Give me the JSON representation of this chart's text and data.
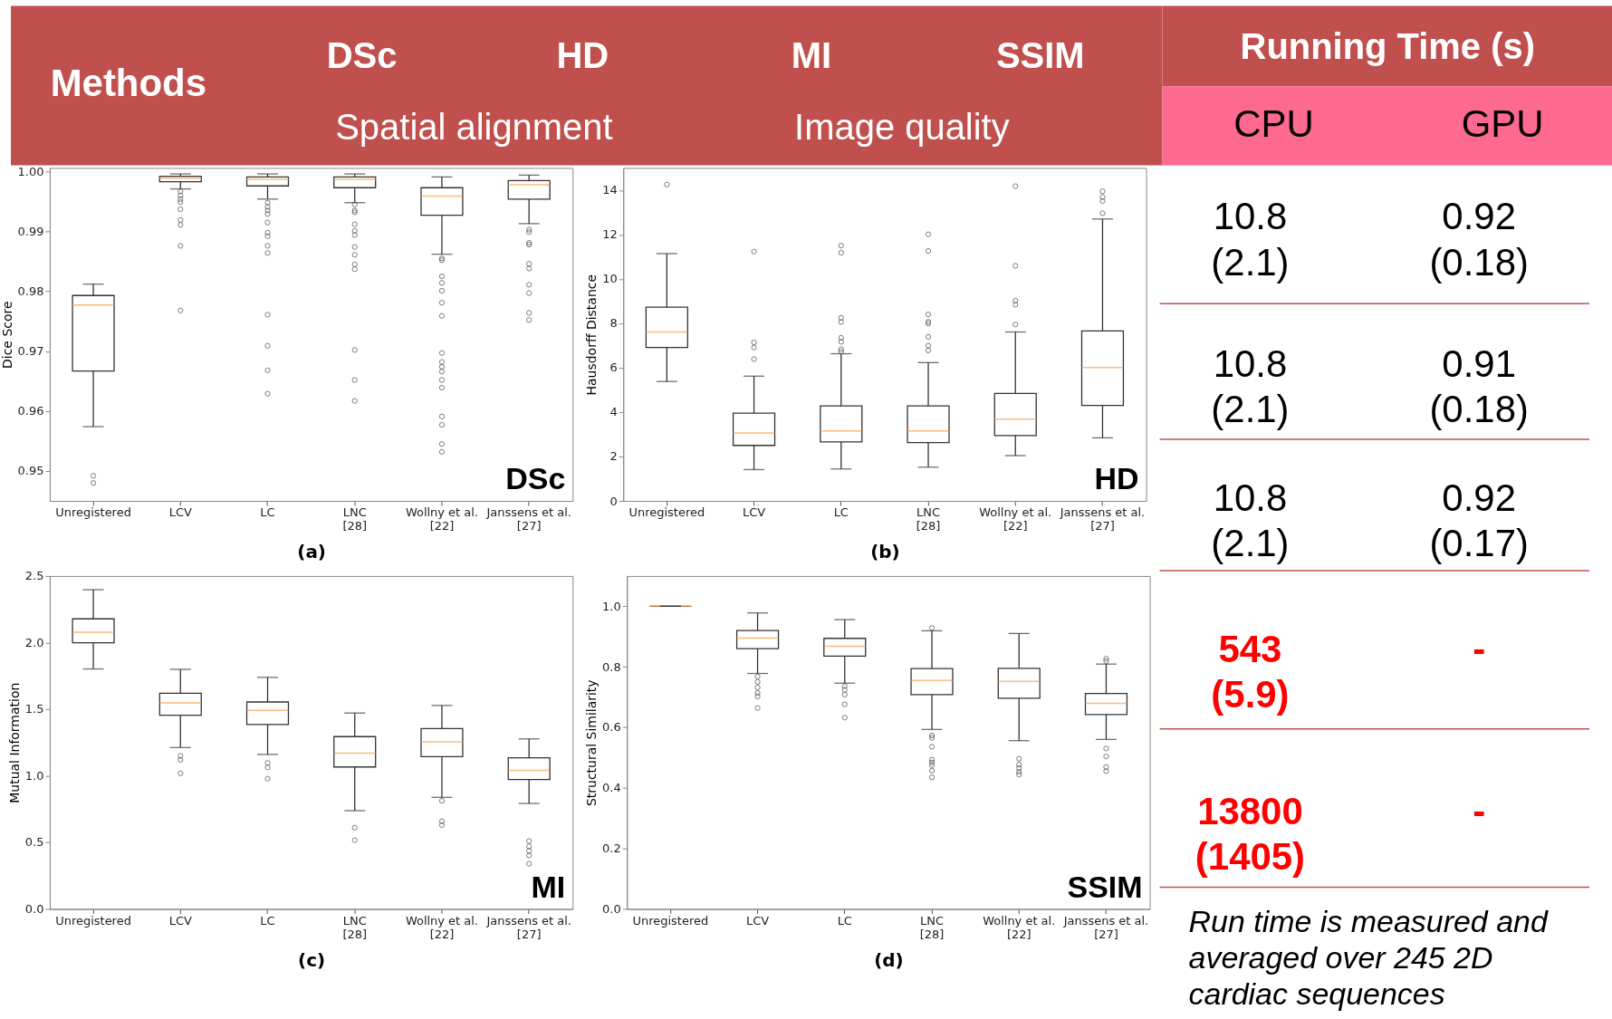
{
  "chart_data": [
    {
      "type": "box",
      "xlabel": "(a)",
      "ylabel": "Dice Score",
      "annotations": [
        "DSc"
      ],
      "categories": [
        "Unregistered",
        "LCV",
        "LC",
        "LNC\n[28]",
        "Wollny et al.\n[22]",
        "Janssens et al.\n[27]"
      ],
      "ylim": [
        0.945,
        1.0006
      ],
      "yticks": [
        0.95,
        0.96,
        0.97,
        0.98,
        0.99,
        {
          "value": 1.0,
          "label": "1.00"
        }
      ],
      "boxes": [
        {
          "low": 0.9574,
          "q1": 0.9667,
          "median": 0.9777,
          "q3": 0.9793,
          "high": 0.9812,
          "outliers": [
            0.9492,
            0.948
          ]
        },
        {
          "low": 0.9971,
          "q1": 0.9983,
          "median": 0.9989,
          "q3": 0.9992,
          "high": 0.9996,
          "outliers": [
            0.9967,
            0.996,
            0.9954,
            0.9949,
            0.9937,
            0.9919,
            0.9911,
            0.9876,
            0.9768
          ]
        },
        {
          "low": 0.9954,
          "q1": 0.9976,
          "median": 0.9987,
          "q3": 0.9991,
          "high": 0.9996,
          "outliers": [
            0.9948,
            0.9941,
            0.9935,
            0.9929,
            0.9915,
            0.9898,
            0.9892,
            0.9876,
            0.9864,
            0.9761,
            0.9709,
            0.9668,
            0.9629
          ]
        },
        {
          "low": 0.9948,
          "q1": 0.9973,
          "median": 0.9987,
          "q3": 0.9991,
          "high": 0.9996,
          "outliers": [
            0.9945,
            0.9935,
            0.9932,
            0.9912,
            0.9901,
            0.9894,
            0.9874,
            0.9861,
            0.9845,
            0.9837,
            0.9702,
            0.9652,
            0.9617
          ]
        },
        {
          "low": 0.9862,
          "q1": 0.9927,
          "median": 0.9959,
          "q3": 0.9973,
          "high": 0.9991,
          "outliers": [
            0.9855,
            0.9852,
            0.9825,
            0.9814,
            0.9801,
            0.9781,
            0.9759,
            0.9697,
            0.9682,
            0.9674,
            0.9666,
            0.9652,
            0.9639,
            0.9591,
            0.9577,
            0.9545,
            0.9532
          ]
        },
        {
          "low": 0.9913,
          "q1": 0.9954,
          "median": 0.9978,
          "q3": 0.9985,
          "high": 0.9994,
          "outliers": [
            0.9903,
            0.9899,
            0.9881,
            0.9878,
            0.9846,
            0.9838,
            0.9811,
            0.9797,
            0.9764,
            0.9752
          ]
        }
      ]
    },
    {
      "type": "box",
      "xlabel": "(b)",
      "ylabel": "Hausdorff Distance",
      "annotations": [
        "HD"
      ],
      "categories": [
        "Unregistered",
        "LCV",
        "LC",
        "LNC\n[28]",
        "Wollny et al.\n[22]",
        "Janssens et al.\n[27]"
      ],
      "ylim": [
        0,
        15
      ],
      "yticks": [
        0,
        2,
        4,
        6,
        8,
        10,
        12,
        14
      ],
      "boxes": [
        {
          "low": 5.38,
          "q1": 6.91,
          "median": 7.61,
          "q3": 8.73,
          "high": 11.14,
          "outliers": [
            14.25
          ]
        },
        {
          "low": 1.41,
          "q1": 2.5,
          "median": 3.06,
          "q3": 3.95,
          "high": 5.62,
          "outliers": [
            11.23,
            7.14,
            6.91,
            6.39
          ]
        },
        {
          "low": 1.44,
          "q1": 2.66,
          "median": 3.15,
          "q3": 4.28,
          "high": 6.63,
          "outliers": [
            11.5,
            11.18,
            8.25,
            8.06,
            7.35,
            7.17,
            6.83,
            6.73
          ]
        },
        {
          "low": 1.52,
          "q1": 2.63,
          "median": 3.15,
          "q3": 4.28,
          "high": 6.23,
          "outliers": [
            12.01,
            11.26,
            8.4,
            8.07,
            7.99,
            7.39,
            6.99,
            6.78
          ]
        },
        {
          "low": 2.04,
          "q1": 2.94,
          "median": 3.68,
          "q3": 4.84,
          "high": 7.61,
          "outliers": [
            14.18,
            10.59,
            9.02,
            8.84,
            7.95
          ]
        },
        {
          "low": 2.84,
          "q1": 4.3,
          "median": 6.01,
          "q3": 7.66,
          "high": 12.7,
          "outliers": [
            13.95,
            13.69,
            13.51,
            12.96
          ]
        }
      ]
    },
    {
      "type": "box",
      "xlabel": "(c)",
      "ylabel": "Mutual Information",
      "annotations": [
        "MI"
      ],
      "categories": [
        "Unregistered",
        "LCV",
        "LC",
        "LNC\n[28]",
        "Wollny et al.\n[22]",
        "Janssens et al.\n[27]"
      ],
      "ylim": [
        0,
        2.5
      ],
      "yticks": [
        {
          "value": 0,
          "label": "0.0"
        },
        0.5,
        {
          "value": 1,
          "label": "1.0"
        },
        1.5,
        {
          "value": 2,
          "label": "2.0"
        },
        2.5
      ],
      "boxes": [
        {
          "low": 1.802,
          "q1": 1.998,
          "median": 2.078,
          "q3": 2.178,
          "high": 2.397
        },
        {
          "low": 1.212,
          "q1": 1.454,
          "median": 1.548,
          "q3": 1.619,
          "high": 1.799,
          "outliers": [
            1.149,
            1.12,
            1.018
          ]
        },
        {
          "low": 1.16,
          "q1": 1.385,
          "median": 1.491,
          "q3": 1.554,
          "high": 1.739,
          "outliers": [
            1.097,
            1.063,
            0.978
          ]
        },
        {
          "low": 0.738,
          "q1": 1.066,
          "median": 1.169,
          "q3": 1.294,
          "high": 1.471,
          "outliers": [
            0.61,
            0.516
          ]
        },
        {
          "low": 0.838,
          "q1": 1.143,
          "median": 1.254,
          "q3": 1.354,
          "high": 1.528,
          "outliers": [
            0.812,
            0.658,
            0.63
          ]
        },
        {
          "low": 0.792,
          "q1": 0.972,
          "median": 1.04,
          "q3": 1.135,
          "high": 1.277,
          "outliers": [
            0.51,
            0.47,
            0.436,
            0.402,
            0.339
          ]
        }
      ]
    },
    {
      "type": "box",
      "xlabel": "(d)",
      "ylabel": "Structural Similarity",
      "annotations": [
        "SSIM"
      ],
      "categories": [
        "Unregistered",
        "LCV",
        "LC",
        "LNC\n[28]",
        "Wollny et al.\n[22]",
        "Janssens et al.\n[27]"
      ],
      "ylim": [
        0,
        1.1
      ],
      "yticks": [
        {
          "value": 0,
          "label": "0.0"
        },
        0.2,
        0.4,
        0.6,
        0.8,
        {
          "value": 1,
          "label": "1.0"
        }
      ],
      "boxes": [
        {
          "low": 1.0,
          "q1": 1.0,
          "median": 1.0,
          "q3": 1.0,
          "high": 1.0
        },
        {
          "low": 0.778,
          "q1": 0.86,
          "median": 0.895,
          "q3": 0.92,
          "high": 0.978,
          "outliers": [
            0.768,
            0.75,
            0.732,
            0.714,
            0.702,
            0.664
          ]
        },
        {
          "low": 0.746,
          "q1": 0.835,
          "median": 0.868,
          "q3": 0.894,
          "high": 0.956,
          "outliers": [
            0.736,
            0.724,
            0.708,
            0.676,
            0.632
          ]
        },
        {
          "low": 0.593,
          "q1": 0.708,
          "median": 0.755,
          "q3": 0.794,
          "high": 0.919,
          "outliers": [
            0.928,
            0.573,
            0.565,
            0.536,
            0.493,
            0.484,
            0.475,
            0.457,
            0.435
          ]
        },
        {
          "low": 0.556,
          "q1": 0.696,
          "median": 0.752,
          "q3": 0.795,
          "high": 0.91,
          "outliers": [
            0.496,
            0.477,
            0.465,
            0.453,
            0.444
          ]
        },
        {
          "low": 0.56,
          "q1": 0.642,
          "median": 0.679,
          "q3": 0.712,
          "high": 0.809,
          "outliers": [
            0.827,
            0.819,
            0.53,
            0.504,
            0.469,
            0.455
          ]
        }
      ]
    },
    {
      "type": "other",
      "title": "Running Time (s)",
      "annotations": [
        "Methods",
        "DSc",
        "HD",
        "MI",
        "SSIM",
        "Spatial alignment",
        "Image quality",
        "CPU",
        "GPU",
        "Run time is measured and averaged over 245 2D cardiac sequences"
      ],
      "cell_labels": [
        [
          "10.8\n(2.1)",
          "0.92\n(0.18)"
        ],
        [
          "10.8\n(2.1)",
          "0.91\n(0.18)"
        ],
        [
          "10.8\n(2.1)",
          "0.92\n(0.17)"
        ],
        [
          "543\n(5.9)",
          "-"
        ],
        [
          "13800\n(1405)",
          "-"
        ]
      ],
      "colors": [
        "#000000",
        "#000000",
        "#000000",
        "#ff0000",
        "#ff0000"
      ]
    }
  ]
}
